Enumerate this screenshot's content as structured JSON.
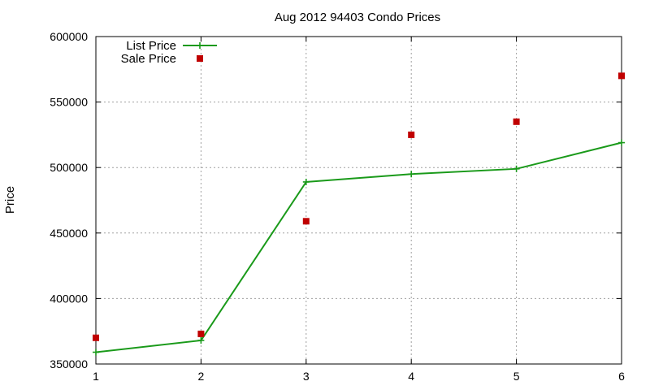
{
  "chart_data": {
    "type": "line",
    "title": "Aug 2012 94403 Condo Prices",
    "xlabel": "",
    "ylabel": "Price",
    "x": [
      1,
      2,
      3,
      4,
      5,
      6
    ],
    "xlim": [
      1,
      6
    ],
    "ylim": [
      350000,
      600000
    ],
    "xticks": [
      "1",
      "2",
      "3",
      "4",
      "5",
      "6"
    ],
    "yticks": [
      "350000",
      "400000",
      "450000",
      "500000",
      "550000",
      "600000"
    ],
    "grid": true,
    "legend_position": "top-left",
    "series": [
      {
        "name": "List Price",
        "style": "line+cross",
        "color": "#1a9a1a",
        "values": [
          359000,
          368000,
          489000,
          495000,
          499000,
          519000
        ]
      },
      {
        "name": "Sale Price",
        "style": "square-points",
        "color": "#c00000",
        "values": [
          370000,
          373000,
          459000,
          525000,
          535000,
          570000
        ]
      }
    ]
  }
}
